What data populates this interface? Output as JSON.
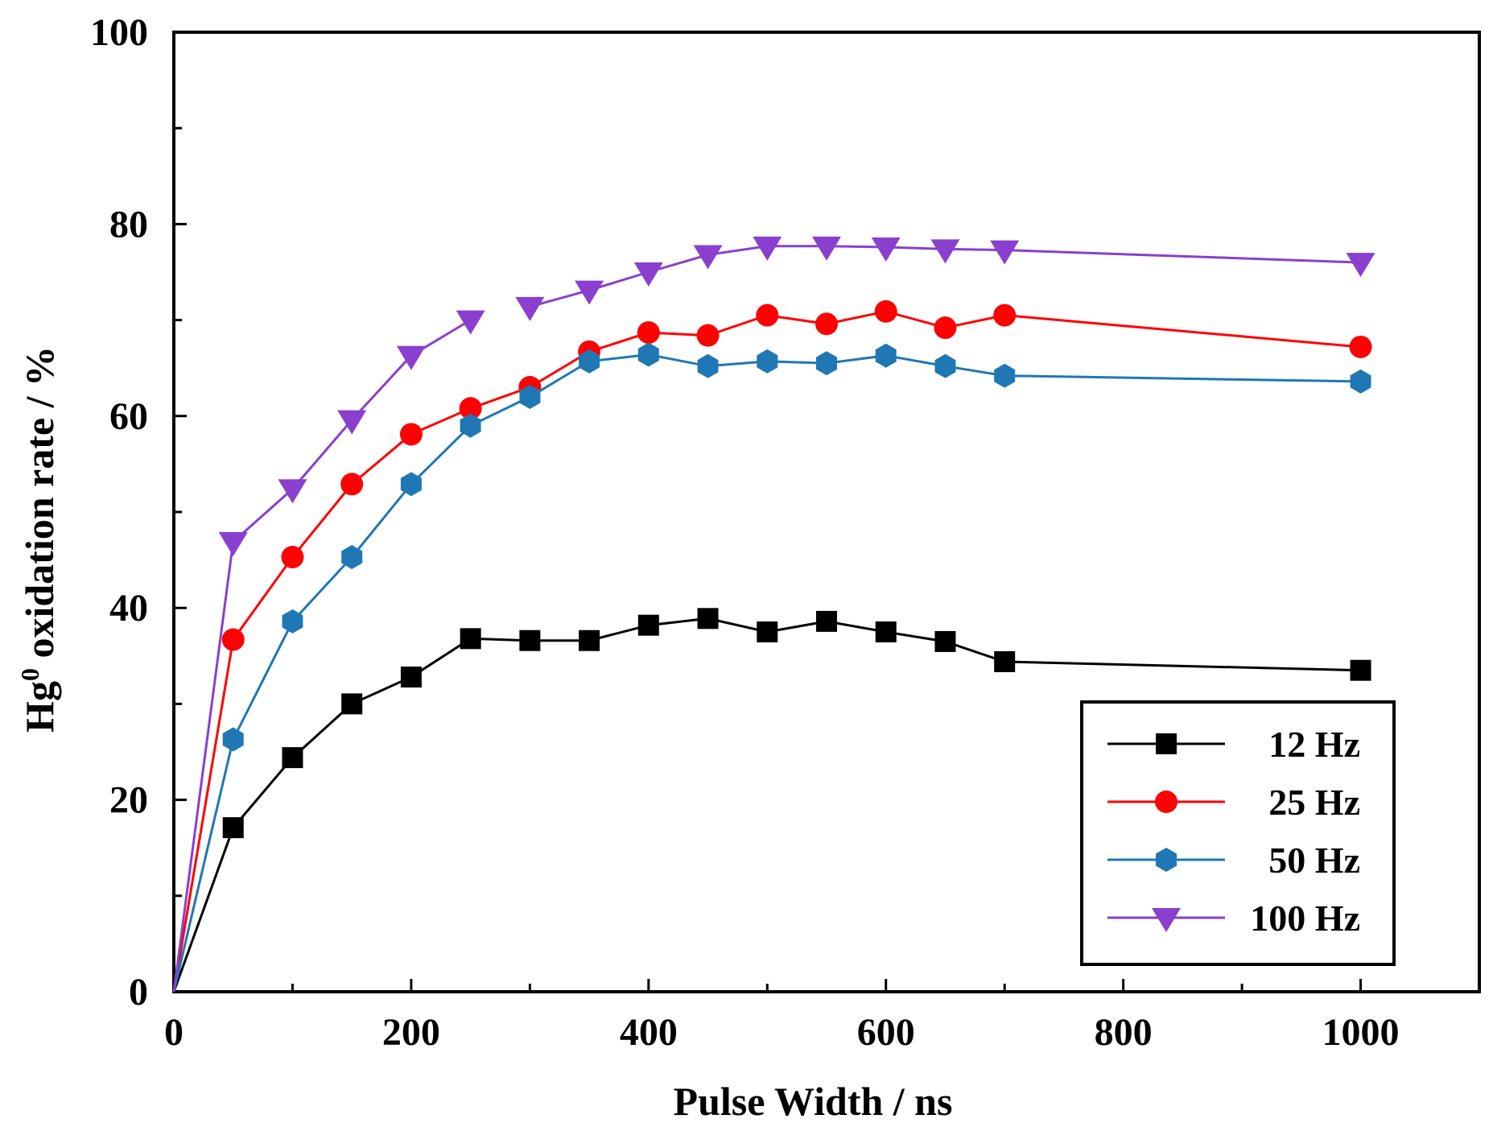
{
  "chart_data": {
    "type": "line",
    "title": "",
    "xlabel": "Pulse Width / ns",
    "ylabel": {
      "base": "Hg",
      "superscript": "0",
      "rest": " oxidation rate / %"
    },
    "xlim": [
      0,
      1100
    ],
    "ylim": [
      0,
      100
    ],
    "xticks": [
      0,
      200,
      400,
      600,
      800,
      1000
    ],
    "yticks": [
      0,
      20,
      40,
      60,
      80,
      100
    ],
    "legend_position": "bottom-right",
    "grid": false,
    "x": [
      0,
      50,
      100,
      150,
      200,
      250,
      300,
      350,
      400,
      450,
      500,
      550,
      600,
      650,
      700,
      1000
    ],
    "series": [
      {
        "name": "12 Hz",
        "color": "#000000",
        "marker": "square",
        "values": [
          0,
          17.1,
          24.4,
          30.0,
          32.8,
          36.8,
          36.6,
          36.6,
          38.2,
          38.9,
          37.5,
          38.6,
          37.5,
          36.5,
          34.4,
          33.5
        ]
      },
      {
        "name": "25 Hz",
        "color": "#ff0000",
        "marker": "circle",
        "values": [
          0,
          36.7,
          45.3,
          52.9,
          58.1,
          60.8,
          63.0,
          66.7,
          68.7,
          68.4,
          70.5,
          69.6,
          70.9,
          69.2,
          70.5,
          67.2
        ]
      },
      {
        "name": "50 Hz",
        "color": "#1f77b4",
        "marker": "hexagon",
        "values": [
          0,
          26.3,
          38.6,
          45.3,
          52.9,
          59.0,
          62.0,
          65.7,
          66.4,
          65.2,
          65.7,
          65.5,
          66.3,
          65.2,
          64.2,
          63.6
        ]
      },
      {
        "name": "100 Hz",
        "color": "#8a3fcf",
        "marker": "triangle-down",
        "segments_break_after_index": 5,
        "values": [
          0,
          46.9,
          52.4,
          59.6,
          66.3,
          70.0,
          71.4,
          73.1,
          75.0,
          76.8,
          77.7,
          77.7,
          77.6,
          77.4,
          77.3,
          76.0
        ]
      }
    ]
  }
}
